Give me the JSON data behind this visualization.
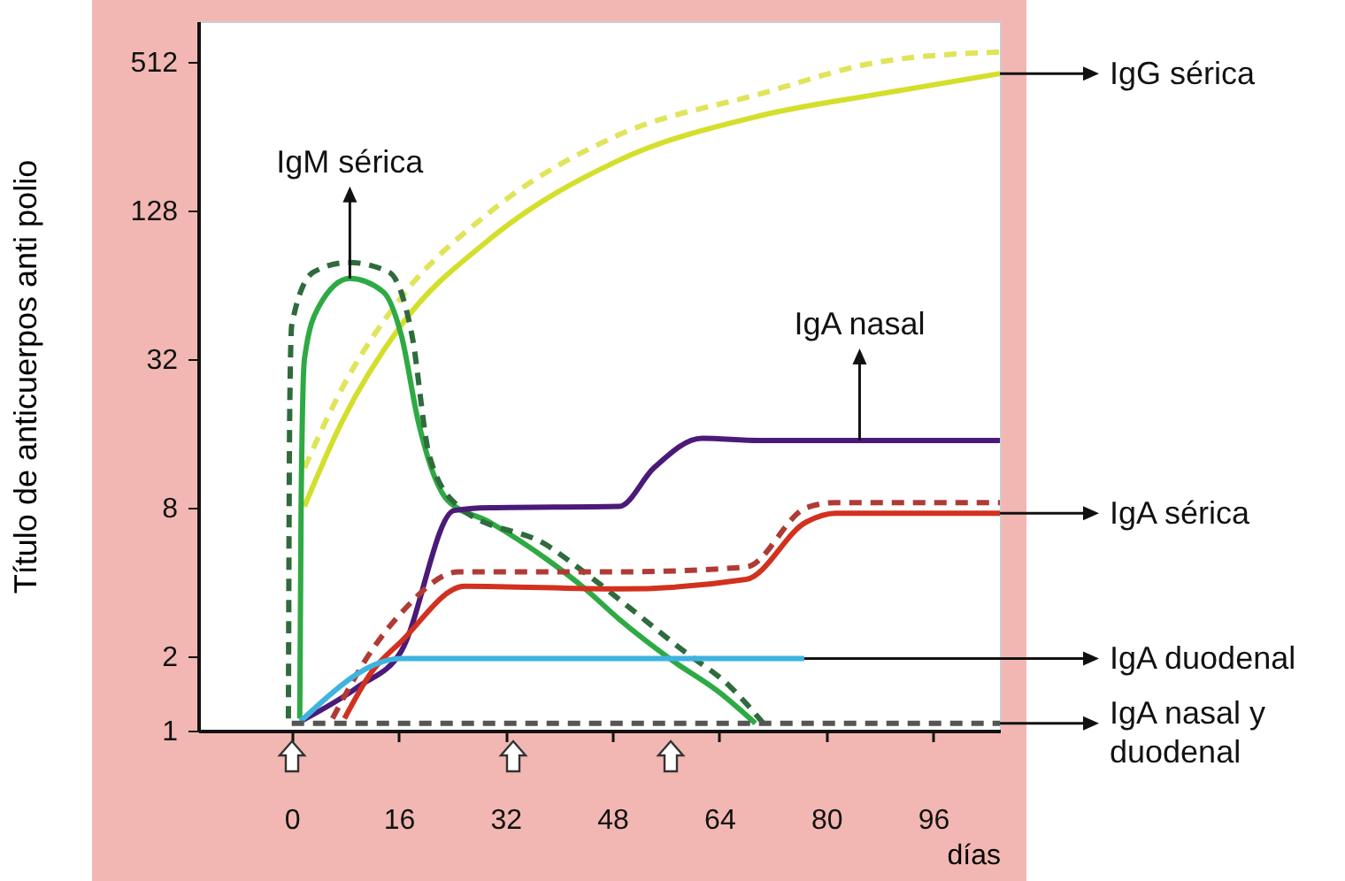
{
  "chart_data": {
    "type": "line",
    "xlabel": "días",
    "ylabel": "Título de anticuerpos anti polio",
    "log": true,
    "xlim": [
      -14,
      106
    ],
    "xticks": [
      0,
      16,
      32,
      48,
      64,
      80,
      96
    ],
    "ylim": [
      1,
      750
    ],
    "yticks": [
      1,
      2,
      8,
      32,
      128,
      512
    ],
    "series": [
      {
        "color": "#d4df2c",
        "x": [
          1.9,
          7.4,
          16.4,
          29.6,
          49,
          70,
          87.8,
          106
        ],
        "values": [
          8.1,
          17.6,
          44,
          98,
          205,
          310,
          380,
          460
        ]
      },
      {
        "color": "#e0e45a",
        "line_style": "dashed",
        "x": [
          1.9,
          7.4,
          16.4,
          29.6,
          49,
          70,
          87.8,
          106
        ],
        "values": [
          11.6,
          24,
          57,
          126,
          260,
          380,
          512,
          563
        ]
      },
      {
        "color": "#2eaa44",
        "x": [
          1.2,
          1.4,
          1.9,
          4,
          8.7,
          13.7,
          16.4,
          19,
          23.3,
          29.6,
          38.4,
          43.7,
          49,
          56.9,
          64,
          69.4
        ],
        "values": [
          1.12,
          8.1,
          32,
          52,
          68,
          60,
          40,
          17.6,
          8.6,
          7.0,
          4.9,
          3.8,
          2.83,
          1.93,
          1.43,
          1.07
        ]
      },
      {
        "color": "#2f6b3c",
        "line_style": "dashed",
        "x": [
          -0.5,
          -0.3,
          0,
          3.2,
          8.5,
          14.6,
          18,
          20.6,
          25,
          38.4,
          43.7,
          58.7,
          65.6,
          70.6
        ],
        "values": [
          1.12,
          20,
          44,
          72,
          79,
          72,
          40,
          13,
          8.1,
          5.6,
          4.4,
          2.1,
          1.51,
          1.07
        ]
      },
      {
        "color": "#4b1a78",
        "x": [
          1.3,
          10,
          16.4,
          24.3,
          29.6,
          49,
          54.2,
          61.4,
          70,
          106
        ],
        "values": [
          1.09,
          1.51,
          2.1,
          7.8,
          8,
          8.1,
          11.6,
          15.3,
          15,
          15
        ]
      },
      {
        "color": "#d2311f",
        "x": [
          7.9,
          11.9,
          16.4,
          25.9,
          49,
          68,
          77,
          81.4,
          106
        ],
        "values": [
          1.12,
          1.72,
          2.3,
          3.85,
          3.75,
          4.1,
          7.0,
          7.6,
          7.6
        ]
      },
      {
        "color": "#b03a34",
        "line_style": "dashed",
        "x": [
          6.1,
          11.9,
          16.4,
          25,
          49,
          68,
          77,
          81.4,
          106
        ],
        "values": [
          1.12,
          2.1,
          3.0,
          4.4,
          4.4,
          4.6,
          8,
          8.4,
          8.4
        ]
      },
      {
        "color": "#3fb3e0",
        "x": [
          1.3,
          16.4,
          76.7
        ],
        "values": [
          1.09,
          1.96,
          1.96
        ]
      },
      {
        "color": "#555555",
        "line_style": "dashed",
        "x": [
          0,
          106
        ],
        "values": [
          1.07,
          1.07
        ]
      }
    ],
    "annotations": [
      {
        "text": "IgM sérica",
        "x": 8.7,
        "y": 68
      },
      {
        "text": "IgA nasal",
        "x": 85,
        "y": 15
      },
      {
        "text": "IgG sérica",
        "x": 106,
        "y": 460
      },
      {
        "text": "IgA sérica",
        "x": 106,
        "y": 7.6
      },
      {
        "text": "IgA duodenal",
        "x": 76.7,
        "y": 1.96
      },
      {
        "text": "IgA nasal y\nduodenal",
        "x": 106,
        "y": 1.07
      }
    ]
  }
}
